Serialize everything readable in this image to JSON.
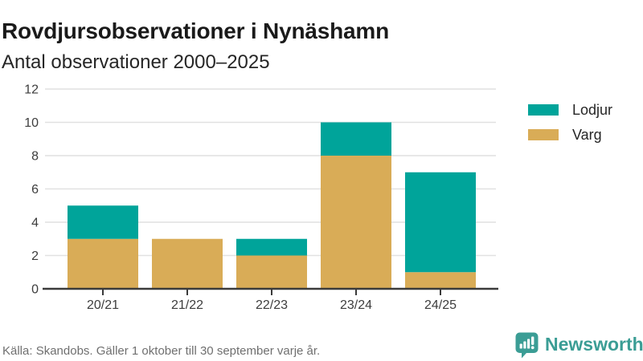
{
  "title": "Rovdjursobservationer i Nynäshamn",
  "subtitle": "Antal observationer 2000–2025",
  "source": "Källa: Skandobs. Gäller 1 oktober till 30 september varje år.",
  "branding": {
    "name": "Newsworthy",
    "color": "#3b9d95",
    "icon": "newsworthy-speech-bubble-barchart-icon"
  },
  "legend": {
    "position": "right",
    "items": [
      {
        "label": "Lodjur",
        "color": "#00a49a"
      },
      {
        "label": "Varg",
        "color": "#d9ac57"
      }
    ]
  },
  "chart_data": {
    "type": "bar",
    "stacked": true,
    "title": "Rovdjursobservationer i Nynäshamn",
    "subtitle": "Antal observationer 2000–2025",
    "categories": [
      "20/21",
      "21/22",
      "22/23",
      "23/24",
      "24/25"
    ],
    "series": [
      {
        "name": "Varg",
        "color": "#d9ac57",
        "values": [
          3,
          3,
          2,
          8,
          1
        ]
      },
      {
        "name": "Lodjur",
        "color": "#00a49a",
        "values": [
          2,
          0,
          1,
          2,
          6
        ]
      }
    ],
    "totals": [
      5,
      3,
      3,
      10,
      7
    ],
    "xlabel": "",
    "ylabel": "Antal observationer",
    "ylim": [
      0,
      12
    ],
    "yticks": [
      0,
      2,
      4,
      6,
      8,
      10,
      12
    ],
    "grid": true,
    "legend_position": "right",
    "axis_color": "#3a3a3a",
    "grid_color": "#e1e1e1"
  }
}
